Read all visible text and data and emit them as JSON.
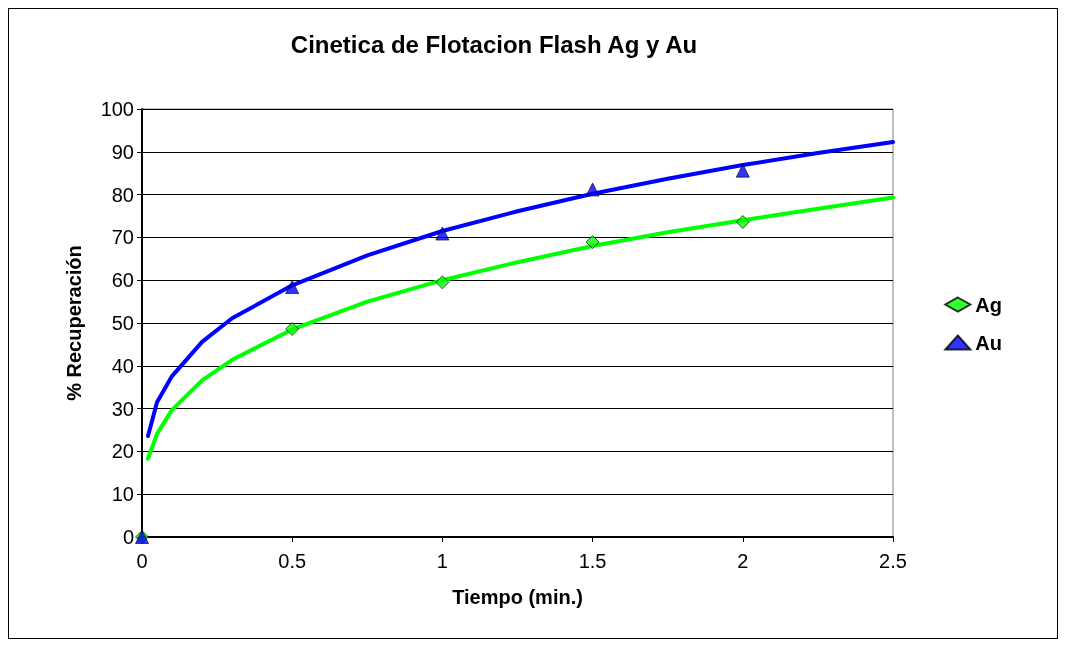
{
  "chart_data": {
    "type": "scatter",
    "title": "Cinetica de Flotacion Flash Ag y Au",
    "xlabel": "Tiempo (min.)",
    "ylabel": "% Recuperación",
    "xlim": [
      0,
      2.5
    ],
    "xticks": [
      0,
      0.5,
      1,
      1.5,
      2,
      2.5
    ],
    "ylim": [
      0,
      100
    ],
    "yticks": [
      0,
      10,
      20,
      30,
      40,
      50,
      60,
      70,
      80,
      90,
      100
    ],
    "grid": "y",
    "legend": "right",
    "series": [
      {
        "name": "Ag",
        "type": "scatter",
        "marker": "diamond",
        "color": "#00ff00",
        "x": [
          0,
          0.5,
          1,
          1.5,
          2
        ],
        "values": [
          0,
          48.6,
          59.5,
          68.9,
          73.6
        ]
      },
      {
        "name": "Au",
        "type": "scatter",
        "marker": "triangle",
        "color": "#0000ff",
        "x": [
          0,
          0.5,
          1,
          1.5,
          2
        ],
        "values": [
          0,
          58.4,
          70.9,
          81.2,
          85.6
        ]
      },
      {
        "type": "line",
        "marker": "none",
        "color": "#00ff00",
        "x": [
          0.02,
          0.05,
          0.1,
          0.2,
          0.3,
          0.5,
          0.75,
          1,
          1.25,
          1.5,
          1.75,
          2,
          2.25,
          2.5
        ],
        "values": [
          18.3,
          24.1,
          29.7,
          36.6,
          41.4,
          48.5,
          55.0,
          60.0,
          64.2,
          68.0,
          71.2,
          74.0,
          76.7,
          79.3
        ]
      },
      {
        "type": "line",
        "marker": "none",
        "color": "#0000ff",
        "x": [
          0.02,
          0.05,
          0.1,
          0.2,
          0.3,
          0.5,
          0.75,
          1,
          1.25,
          1.5,
          1.75,
          2,
          2.25,
          2.5
        ],
        "values": [
          23.6,
          31.5,
          37.6,
          45.6,
          51.1,
          58.8,
          65.8,
          71.5,
          76.1,
          80.2,
          83.7,
          86.9,
          89.7,
          92.3
        ]
      }
    ]
  }
}
